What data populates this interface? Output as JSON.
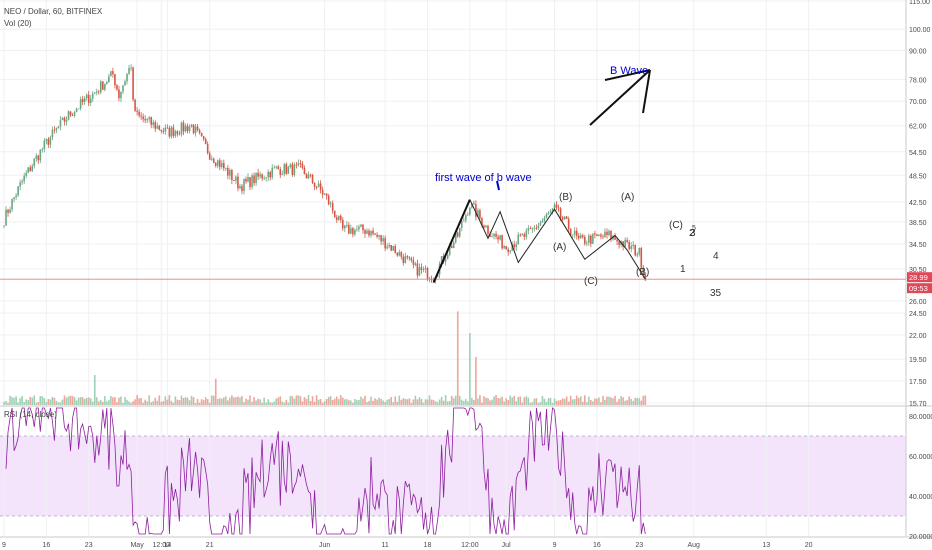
{
  "header": {
    "symbol": "NEO / Dollar, 60, BITFINEX",
    "volume_label": "Vol (20)",
    "rsi_label": "RSI (14, close)"
  },
  "colors": {
    "up": "#6ba583",
    "down": "#d75442",
    "rsi_line": "#8e1fa0",
    "rsi_band": "#f3e4fb",
    "annotation_blue": "#0000cc",
    "price_line": "#f07b7b",
    "grid": "#eef0f3"
  },
  "chart_data": [
    {
      "type": "candlestick",
      "scale": "log",
      "ylim": [
        15.7,
        115.0
      ],
      "y_ticks": [
        "115.00",
        "100.00",
        "90.00",
        "78.00",
        "70.00",
        "62.00",
        "54.50",
        "48.50",
        "42.50",
        "38.50",
        "34.50",
        "30.50",
        "26.00",
        "24.50",
        "22.00",
        "19.50",
        "17.50",
        "15.70"
      ],
      "x_ticks": [
        "9",
        "16",
        "23",
        "May",
        "12:00",
        "14",
        "21",
        "Jun",
        "11",
        "18",
        "12:00",
        "Jul",
        "9",
        "16",
        "23",
        "Aug",
        "13",
        "20"
      ],
      "last_price_label": "28.99",
      "countdown_label": "09:53",
      "last_price": 28.99,
      "price_path": [
        [
          "Apr 9",
          39.0
        ],
        [
          "Apr 12",
          47.0
        ],
        [
          "Apr 16",
          57.0
        ],
        [
          "Apr 20",
          66.0
        ],
        [
          "Apr 24",
          73.0
        ],
        [
          "Apr 27",
          80.0
        ],
        [
          "Apr 28",
          72.0
        ],
        [
          "Apr 30",
          84.0
        ],
        [
          "May 1",
          95.0
        ],
        [
          "May 5",
          88.0
        ],
        [
          "May 9",
          65.0
        ],
        [
          "May 14",
          60.0
        ],
        [
          "May 18",
          62.0
        ],
        [
          "May 21",
          54.0
        ],
        [
          "May 26",
          46.0
        ],
        [
          "Jun 1",
          50.0
        ],
        [
          "Jun 5",
          50.0
        ],
        [
          "Jun 9",
          44.0
        ],
        [
          "Jun 12",
          37.0
        ],
        [
          "Jun 16",
          37.0
        ],
        [
          "Jun 20",
          34.0
        ],
        [
          "Jun 24",
          30.5
        ],
        [
          "Jun 27",
          29.5
        ],
        [
          "Jul 1",
          36.0
        ],
        [
          "Jul 3",
          42.0
        ],
        [
          "Jul 6",
          37.0
        ],
        [
          "Jul 9",
          34.0
        ],
        [
          "Jul 13",
          36.5
        ],
        [
          "Jul 17",
          41.0
        ],
        [
          "Jul 21",
          35.0
        ],
        [
          "Jul 26",
          36.0
        ],
        [
          "Jul 31",
          33.0
        ],
        [
          "Aug 1",
          29.0
        ]
      ],
      "annotations": [
        {
          "text": "first wave of b wave",
          "color": "#0000cc"
        },
        {
          "text": "B Wave",
          "color": "#0000cc"
        },
        {
          "text": "(B)"
        },
        {
          "text": "(A)"
        },
        {
          "text": "(A)"
        },
        {
          "text": "(C)"
        },
        {
          "text": "(B)"
        },
        {
          "text": "(C)"
        },
        {
          "text": "1"
        },
        {
          "text": "2"
        },
        {
          "text": "3"
        },
        {
          "text": "5"
        },
        {
          "text": "4"
        },
        {
          "text": "35"
        }
      ]
    },
    {
      "type": "bar",
      "series": [
        {
          "name": "Vol (20)"
        }
      ],
      "spikes": [
        {
          "date": "Jul 1",
          "rel": 0.78
        },
        {
          "date": "Jul 3",
          "rel": 0.6
        },
        {
          "date": "Jul 4",
          "rel": 0.4
        },
        {
          "date": "Apr 24",
          "rel": 0.25
        },
        {
          "date": "May 22",
          "rel": 0.22
        }
      ]
    },
    {
      "type": "line",
      "series": [
        {
          "name": "RSI (14, close)"
        }
      ],
      "ylim": [
        20,
        85
      ],
      "y_ticks": [
        "80.0000",
        "60.0000",
        "40.0000",
        "20.0000"
      ],
      "bands": [
        30,
        70
      ]
    }
  ]
}
